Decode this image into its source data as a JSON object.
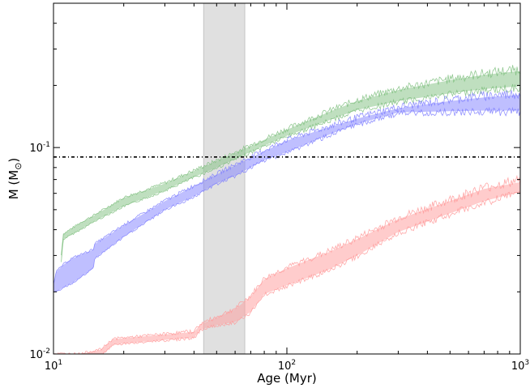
{
  "chart_data": {
    "type": "area",
    "title": "",
    "xlabel": "Age (Myr)",
    "ylabel_main": "M (M",
    "ylabel_sub": "⊙",
    "ylabel_close": ")",
    "xscale": "log",
    "yscale": "log",
    "xlim": [
      10,
      1000
    ],
    "ylim": [
      0.01,
      0.5
    ],
    "x_ticks": [
      {
        "value": 10,
        "base": "10",
        "exp": "1"
      },
      {
        "value": 100,
        "base": "10",
        "exp": "2"
      },
      {
        "value": 1000,
        "base": "10",
        "exp": "3"
      }
    ],
    "y_ticks": [
      {
        "value": 0.01,
        "base": "10",
        "exp": "-2"
      },
      {
        "value": 0.1,
        "base": "10",
        "exp": "-1"
      }
    ],
    "grid": false,
    "shaded_age_range": [
      44,
      66
    ],
    "reference_mass": 0.09,
    "series": [
      {
        "color": "#7fbf7f",
        "x": [
          10.8,
          11,
          13,
          15,
          20,
          30,
          40,
          50,
          60,
          80,
          100,
          150,
          200,
          300,
          500,
          700,
          1000
        ],
        "lower": [
          0.028,
          0.036,
          0.04,
          0.044,
          0.052,
          0.062,
          0.072,
          0.08,
          0.088,
          0.102,
          0.114,
          0.135,
          0.152,
          0.168,
          0.183,
          0.192,
          0.198
        ],
        "upper": [
          0.03,
          0.038,
          0.043,
          0.047,
          0.057,
          0.067,
          0.077,
          0.086,
          0.094,
          0.109,
          0.122,
          0.148,
          0.168,
          0.19,
          0.212,
          0.225,
          0.235
        ]
      },
      {
        "color": "#7f7fff",
        "x": [
          10,
          10.3,
          11,
          12,
          14.8,
          15,
          20,
          30,
          40,
          50,
          60,
          80,
          100,
          150,
          200,
          300,
          500,
          700,
          1000
        ],
        "lower": [
          0.02,
          0.02,
          0.021,
          0.022,
          0.026,
          0.029,
          0.037,
          0.05,
          0.058,
          0.067,
          0.073,
          0.087,
          0.095,
          0.115,
          0.13,
          0.148,
          0.15,
          0.151,
          0.151
        ],
        "upper": [
          0.022,
          0.025,
          0.027,
          0.029,
          0.032,
          0.034,
          0.042,
          0.055,
          0.065,
          0.074,
          0.082,
          0.096,
          0.108,
          0.125,
          0.138,
          0.155,
          0.168,
          0.175,
          0.18
        ]
      },
      {
        "color": "#ff9999",
        "x": [
          10,
          13,
          16,
          18,
          25,
          40,
          43,
          50,
          60,
          70,
          80,
          100,
          150,
          200,
          300,
          500,
          700,
          1000
        ],
        "lower": [
          0.0095,
          0.0095,
          0.0098,
          0.0111,
          0.0115,
          0.012,
          0.0132,
          0.0138,
          0.0143,
          0.016,
          0.0195,
          0.0215,
          0.0255,
          0.03,
          0.039,
          0.048,
          0.055,
          0.061
        ],
        "upper": [
          0.01,
          0.01,
          0.0105,
          0.0118,
          0.0122,
          0.0128,
          0.014,
          0.015,
          0.0165,
          0.019,
          0.023,
          0.026,
          0.031,
          0.036,
          0.045,
          0.055,
          0.063,
          0.068
        ]
      }
    ]
  }
}
